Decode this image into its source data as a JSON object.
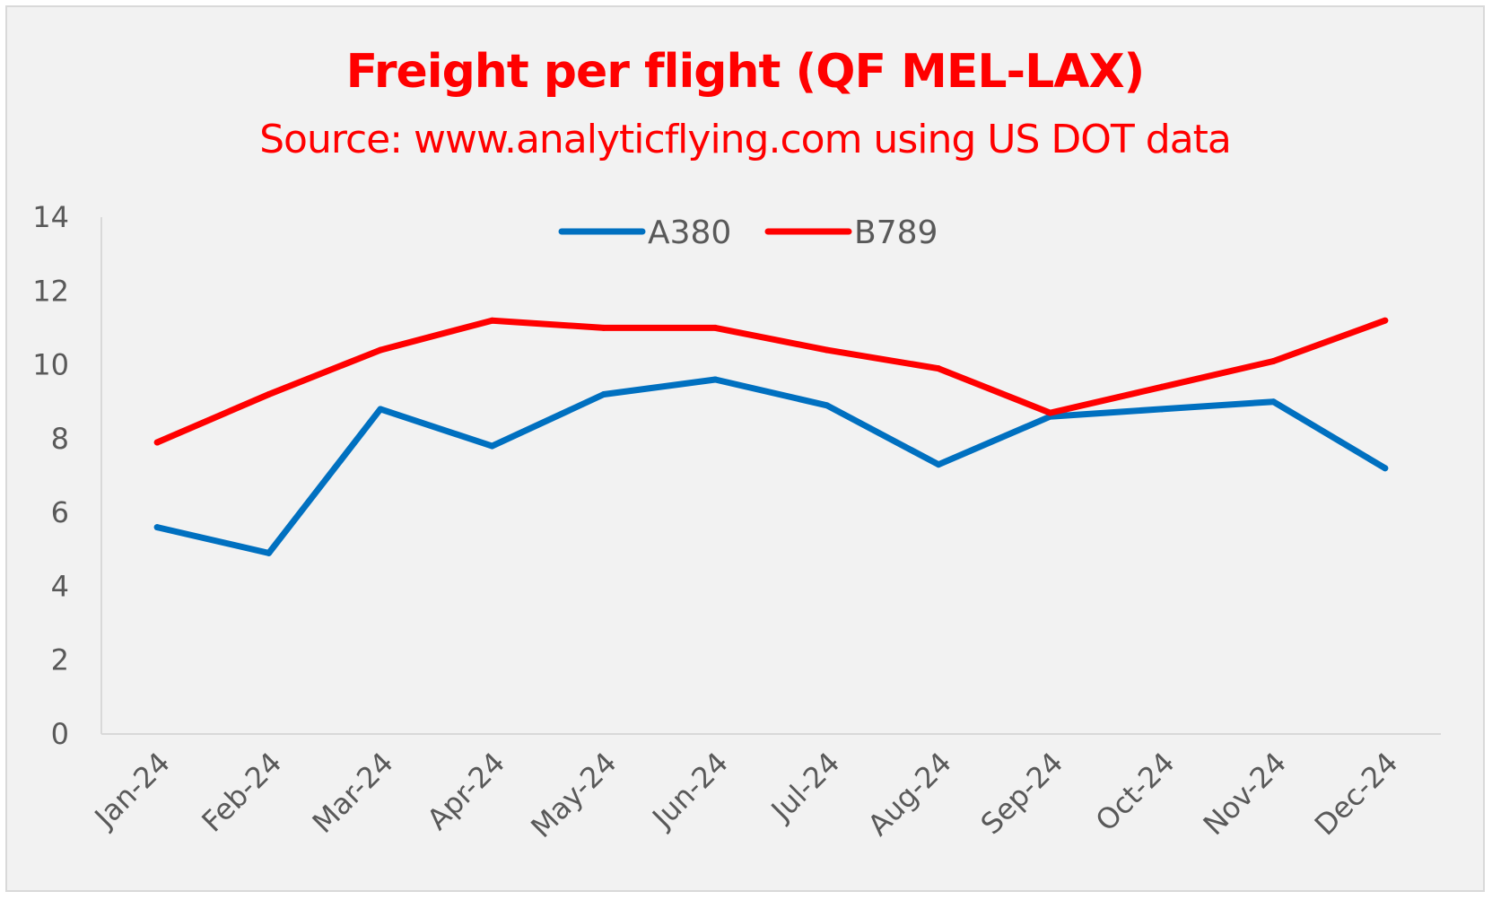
{
  "chart_data": {
    "type": "line",
    "title": "Freight per flight (QF MEL-LAX)",
    "subtitle": "Source: www.analyticflying.com using US DOT data",
    "categories": [
      "Jan-24",
      "Feb-24",
      "Mar-24",
      "Apr-24",
      "May-24",
      "Jun-24",
      "Jul-24",
      "Aug-24",
      "Sep-24",
      "Oct-24",
      "Nov-24",
      "Dec-24"
    ],
    "series": [
      {
        "name": "A380",
        "color": "#0070c0",
        "values": [
          5.6,
          4.9,
          8.8,
          7.8,
          9.2,
          9.6,
          8.9,
          7.3,
          8.6,
          8.8,
          9.0,
          7.2
        ]
      },
      {
        "name": "B789",
        "color": "#ff0000",
        "values": [
          7.9,
          9.2,
          10.4,
          11.2,
          11.0,
          11.0,
          10.4,
          9.9,
          8.7,
          9.4,
          10.1,
          11.2
        ]
      }
    ],
    "yticks": [
      "0",
      "2",
      "4",
      "6",
      "8",
      "10",
      "12",
      "14"
    ],
    "ylim": [
      0,
      14
    ],
    "legend": "top-center",
    "grid": false,
    "xlabel": "",
    "ylabel": ""
  }
}
